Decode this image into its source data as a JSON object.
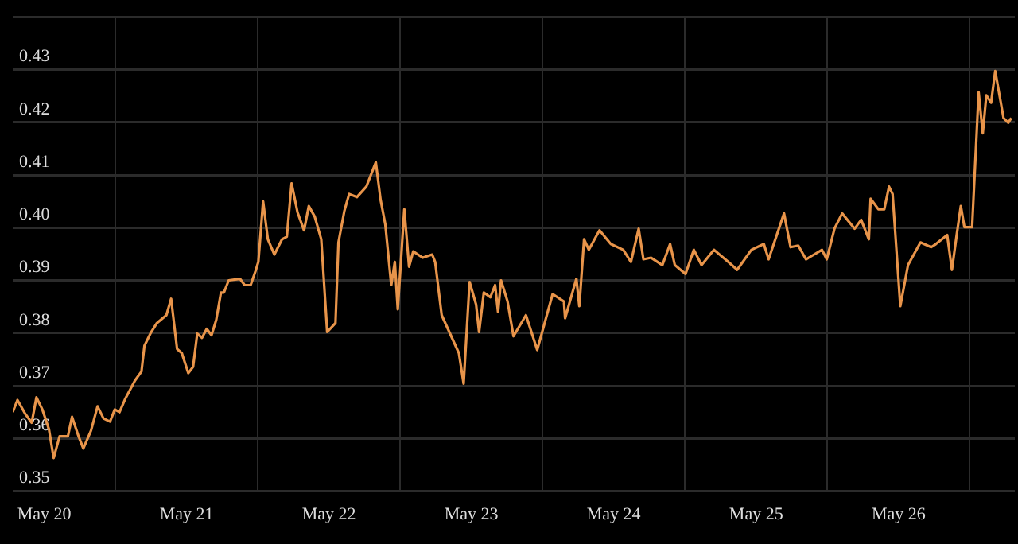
{
  "chart_data": {
    "type": "line",
    "x": [
      "--05-19T18:42",
      "--05-19T19:30",
      "--05-19T20:48",
      "--05-19T21:54",
      "--05-19T22:42",
      "--05-19T23:42",
      "--05-20T00:48",
      "--05-20T01:36",
      "--05-20T02:36",
      "--05-20T04:00",
      "--05-20T04:42",
      "--05-20T05:48",
      "--05-20T06:36",
      "--05-20T07:54",
      "--05-20T09:00",
      "--05-20T10:00",
      "--05-20T11:06",
      "--05-20T11:54",
      "--05-20T12:42",
      "--05-20T13:42",
      "--05-20T15:18",
      "--05-20T16:24",
      "--05-20T16:54",
      "--05-20T17:54",
      "--05-20T19:00",
      "--05-20T20:36",
      "--05-20T21:24",
      "--05-20T22:24",
      "--05-20T23:12",
      "--05-21T00:18",
      "--05-21T01:06",
      "--05-21T01:48",
      "--05-21T02:36",
      "--05-21T03:24",
      "--05-21T04:12",
      "--05-21T05:00",
      "--05-21T05:48",
      "--05-21T06:18",
      "--05-21T07:06",
      "--05-21T09:00",
      "--05-21T09:48",
      "--05-21T10:48",
      "--05-21T11:36",
      "--05-21T12:06",
      "--05-21T12:54",
      "--05-21T13:42",
      "--05-21T14:48",
      "--05-21T16:06",
      "--05-21T16:54",
      "--05-21T17:42",
      "--05-21T18:42",
      "--05-21T19:48",
      "--05-21T20:36",
      "--05-21T21:36",
      "--05-21T22:42",
      "--05-21T23:42",
      "--05-22T01:06",
      "--05-22T01:36",
      "--05-22T02:36",
      "--05-22T03:24",
      "--05-22T04:42",
      "--05-22T06:18",
      "--05-22T07:54",
      "--05-22T08:42",
      "--05-22T09:30",
      "--05-22T10:30",
      "--05-22T11:06",
      "--05-22T11:36",
      "--05-22T12:42",
      "--05-22T13:30",
      "--05-22T14:12",
      "--05-22T15:48",
      "--05-22T17:24",
      "--05-22T17:54",
      "--05-22T19:00",
      "--05-22T19:48",
      "--05-22T21:54",
      "--05-22T22:42",
      "--05-22T23:42",
      "--05-23T00:48",
      "--05-23T01:18",
      "--05-23T02:06",
      "--05-23T03:12",
      "--05-23T04:00",
      "--05-23T04:30",
      "--05-23T05:00",
      "--05-23T06:06",
      "--05-23T07:06",
      "--05-23T09:12",
      "--05-23T11:06",
      "--05-23T13:42",
      "--05-23T15:36",
      "--05-23T15:48",
      "--05-23T17:42",
      "--05-23T18:12",
      "--05-23T19:00",
      "--05-23T19:48",
      "--05-23T21:36",
      "--05-23T23:30",
      "--05-24T01:36",
      "--05-24T02:54",
      "--05-24T04:12",
      "--05-24T05:00",
      "--05-24T06:18",
      "--05-24T08:12",
      "--05-24T09:30",
      "--05-24T10:18",
      "--05-24T12:06",
      "--05-24T13:30",
      "--05-24T14:48",
      "--05-24T16:54",
      "--05-24T19:18",
      "--05-24T20:48",
      "--05-24T23:12",
      "--05-25T01:18",
      "--05-25T02:06",
      "--05-25T04:42",
      "--05-25T05:48",
      "--05-25T07:06",
      "--05-25T08:24",
      "--05-25T11:06",
      "--05-25T11:54",
      "--05-25T13:12",
      "--05-25T14:30",
      "--05-25T16:36",
      "--05-25T17:42",
      "--05-25T19:00",
      "--05-25T19:18",
      "--05-25T20:36",
      "--05-25T21:36",
      "--05-25T22:24",
      "--05-25T23:00",
      "--05-26T00:18",
      "--05-26T01:36",
      "--05-26T03:42",
      "--05-26T05:30",
      "--05-26T06:18",
      "--05-26T08:12",
      "--05-26T09:00",
      "--05-26T09:48",
      "--05-26T10:30",
      "--05-26T11:06",
      "--05-26T12:24",
      "--05-26T13:30",
      "--05-26T14:12",
      "--05-26T14:48",
      "--05-26T15:36",
      "--05-26T16:18",
      "--05-26T17:42",
      "--05-26T18:30",
      "--05-26T19:00"
    ],
    "series": [
      {
        "color": "#e8944a",
        "values": [
          0.365,
          0.3673,
          0.3647,
          0.363,
          0.3678,
          0.3655,
          0.3618,
          0.3563,
          0.3604,
          0.3604,
          0.3641,
          0.3604,
          0.3581,
          0.3615,
          0.3661,
          0.3638,
          0.3632,
          0.3655,
          0.365,
          0.3676,
          0.371,
          0.3727,
          0.3776,
          0.3799,
          0.3819,
          0.3834,
          0.3865,
          0.377,
          0.3762,
          0.3724,
          0.3736,
          0.3799,
          0.3791,
          0.3808,
          0.3796,
          0.3825,
          0.3877,
          0.3877,
          0.39,
          0.3903,
          0.3891,
          0.3891,
          0.3917,
          0.3935,
          0.405,
          0.3978,
          0.3949,
          0.3978,
          0.3983,
          0.4084,
          0.4029,
          0.3995,
          0.4041,
          0.4021,
          0.3978,
          0.3802,
          0.3819,
          0.3972,
          0.4032,
          0.4064,
          0.4058,
          0.4078,
          0.4124,
          0.4053,
          0.4006,
          0.3891,
          0.3935,
          0.3845,
          0.4035,
          0.3926,
          0.3955,
          0.3943,
          0.3949,
          0.3935,
          0.3834,
          0.3814,
          0.3762,
          0.3704,
          0.3897,
          0.3854,
          0.3802,
          0.3877,
          0.3868,
          0.3891,
          0.384,
          0.39,
          0.386,
          0.3794,
          0.3834,
          0.3768,
          0.3874,
          0.386,
          0.3828,
          0.3903,
          0.3851,
          0.3978,
          0.3958,
          0.3995,
          0.3969,
          0.3958,
          0.3935,
          0.3998,
          0.394,
          0.3943,
          0.3929,
          0.3969,
          0.3929,
          0.3912,
          0.3958,
          0.3929,
          0.3958,
          0.3935,
          0.392,
          0.3958,
          0.3969,
          0.394,
          0.4027,
          0.3963,
          0.3966,
          0.394,
          0.3958,
          0.394,
          0.3998,
          0.4027,
          0.3998,
          0.4015,
          0.3978,
          0.4055,
          0.4035,
          0.4035,
          0.4078,
          0.4064,
          0.3851,
          0.3929,
          0.3972,
          0.3963,
          0.3969,
          0.3986,
          0.392,
          0.3986,
          0.4041,
          0.4001,
          0.4001,
          0.4257,
          0.4179,
          0.4251,
          0.4237,
          0.4297,
          0.4208,
          0.4199,
          0.4208
        ]
      }
    ],
    "xlim": [
      "--05-19T18:42",
      "--05-26T19:36"
    ],
    "xticks": [
      {
        "value": "--05-20",
        "label": "May 20"
      },
      {
        "value": "--05-20T12:00",
        "label": null
      },
      {
        "value": "--05-21",
        "label": "May 21"
      },
      {
        "value": "--05-21T12:00",
        "label": null
      },
      {
        "value": "--05-22",
        "label": "May 22"
      },
      {
        "value": "--05-22T12:00",
        "label": null
      },
      {
        "value": "--05-23",
        "label": "May 23"
      },
      {
        "value": "--05-23T12:00",
        "label": null
      },
      {
        "value": "--05-24",
        "label": "May 24"
      },
      {
        "value": "--05-24T12:00",
        "label": null
      },
      {
        "value": "--05-25",
        "label": "May 25"
      },
      {
        "value": "--05-25T12:00",
        "label": null
      },
      {
        "value": "--05-26",
        "label": "May 26"
      },
      {
        "value": "--05-26T12:00",
        "label": null
      }
    ],
    "ylim": [
      0.35,
      0.44
    ],
    "yticks": [
      {
        "value": 0.35,
        "label": "0.35"
      },
      {
        "value": 0.36,
        "label": "0.36"
      },
      {
        "value": 0.37,
        "label": "0.37"
      },
      {
        "value": 0.38,
        "label": "0.38"
      },
      {
        "value": 0.39,
        "label": "0.39"
      },
      {
        "value": 0.4,
        "label": "0.40"
      },
      {
        "value": 0.41,
        "label": "0.41"
      },
      {
        "value": 0.42,
        "label": "0.42"
      },
      {
        "value": 0.43,
        "label": "0.43"
      },
      {
        "value": 0.44,
        "label": null
      }
    ],
    "grid": true,
    "legend": false,
    "marker": "none",
    "line_style": "solid"
  }
}
